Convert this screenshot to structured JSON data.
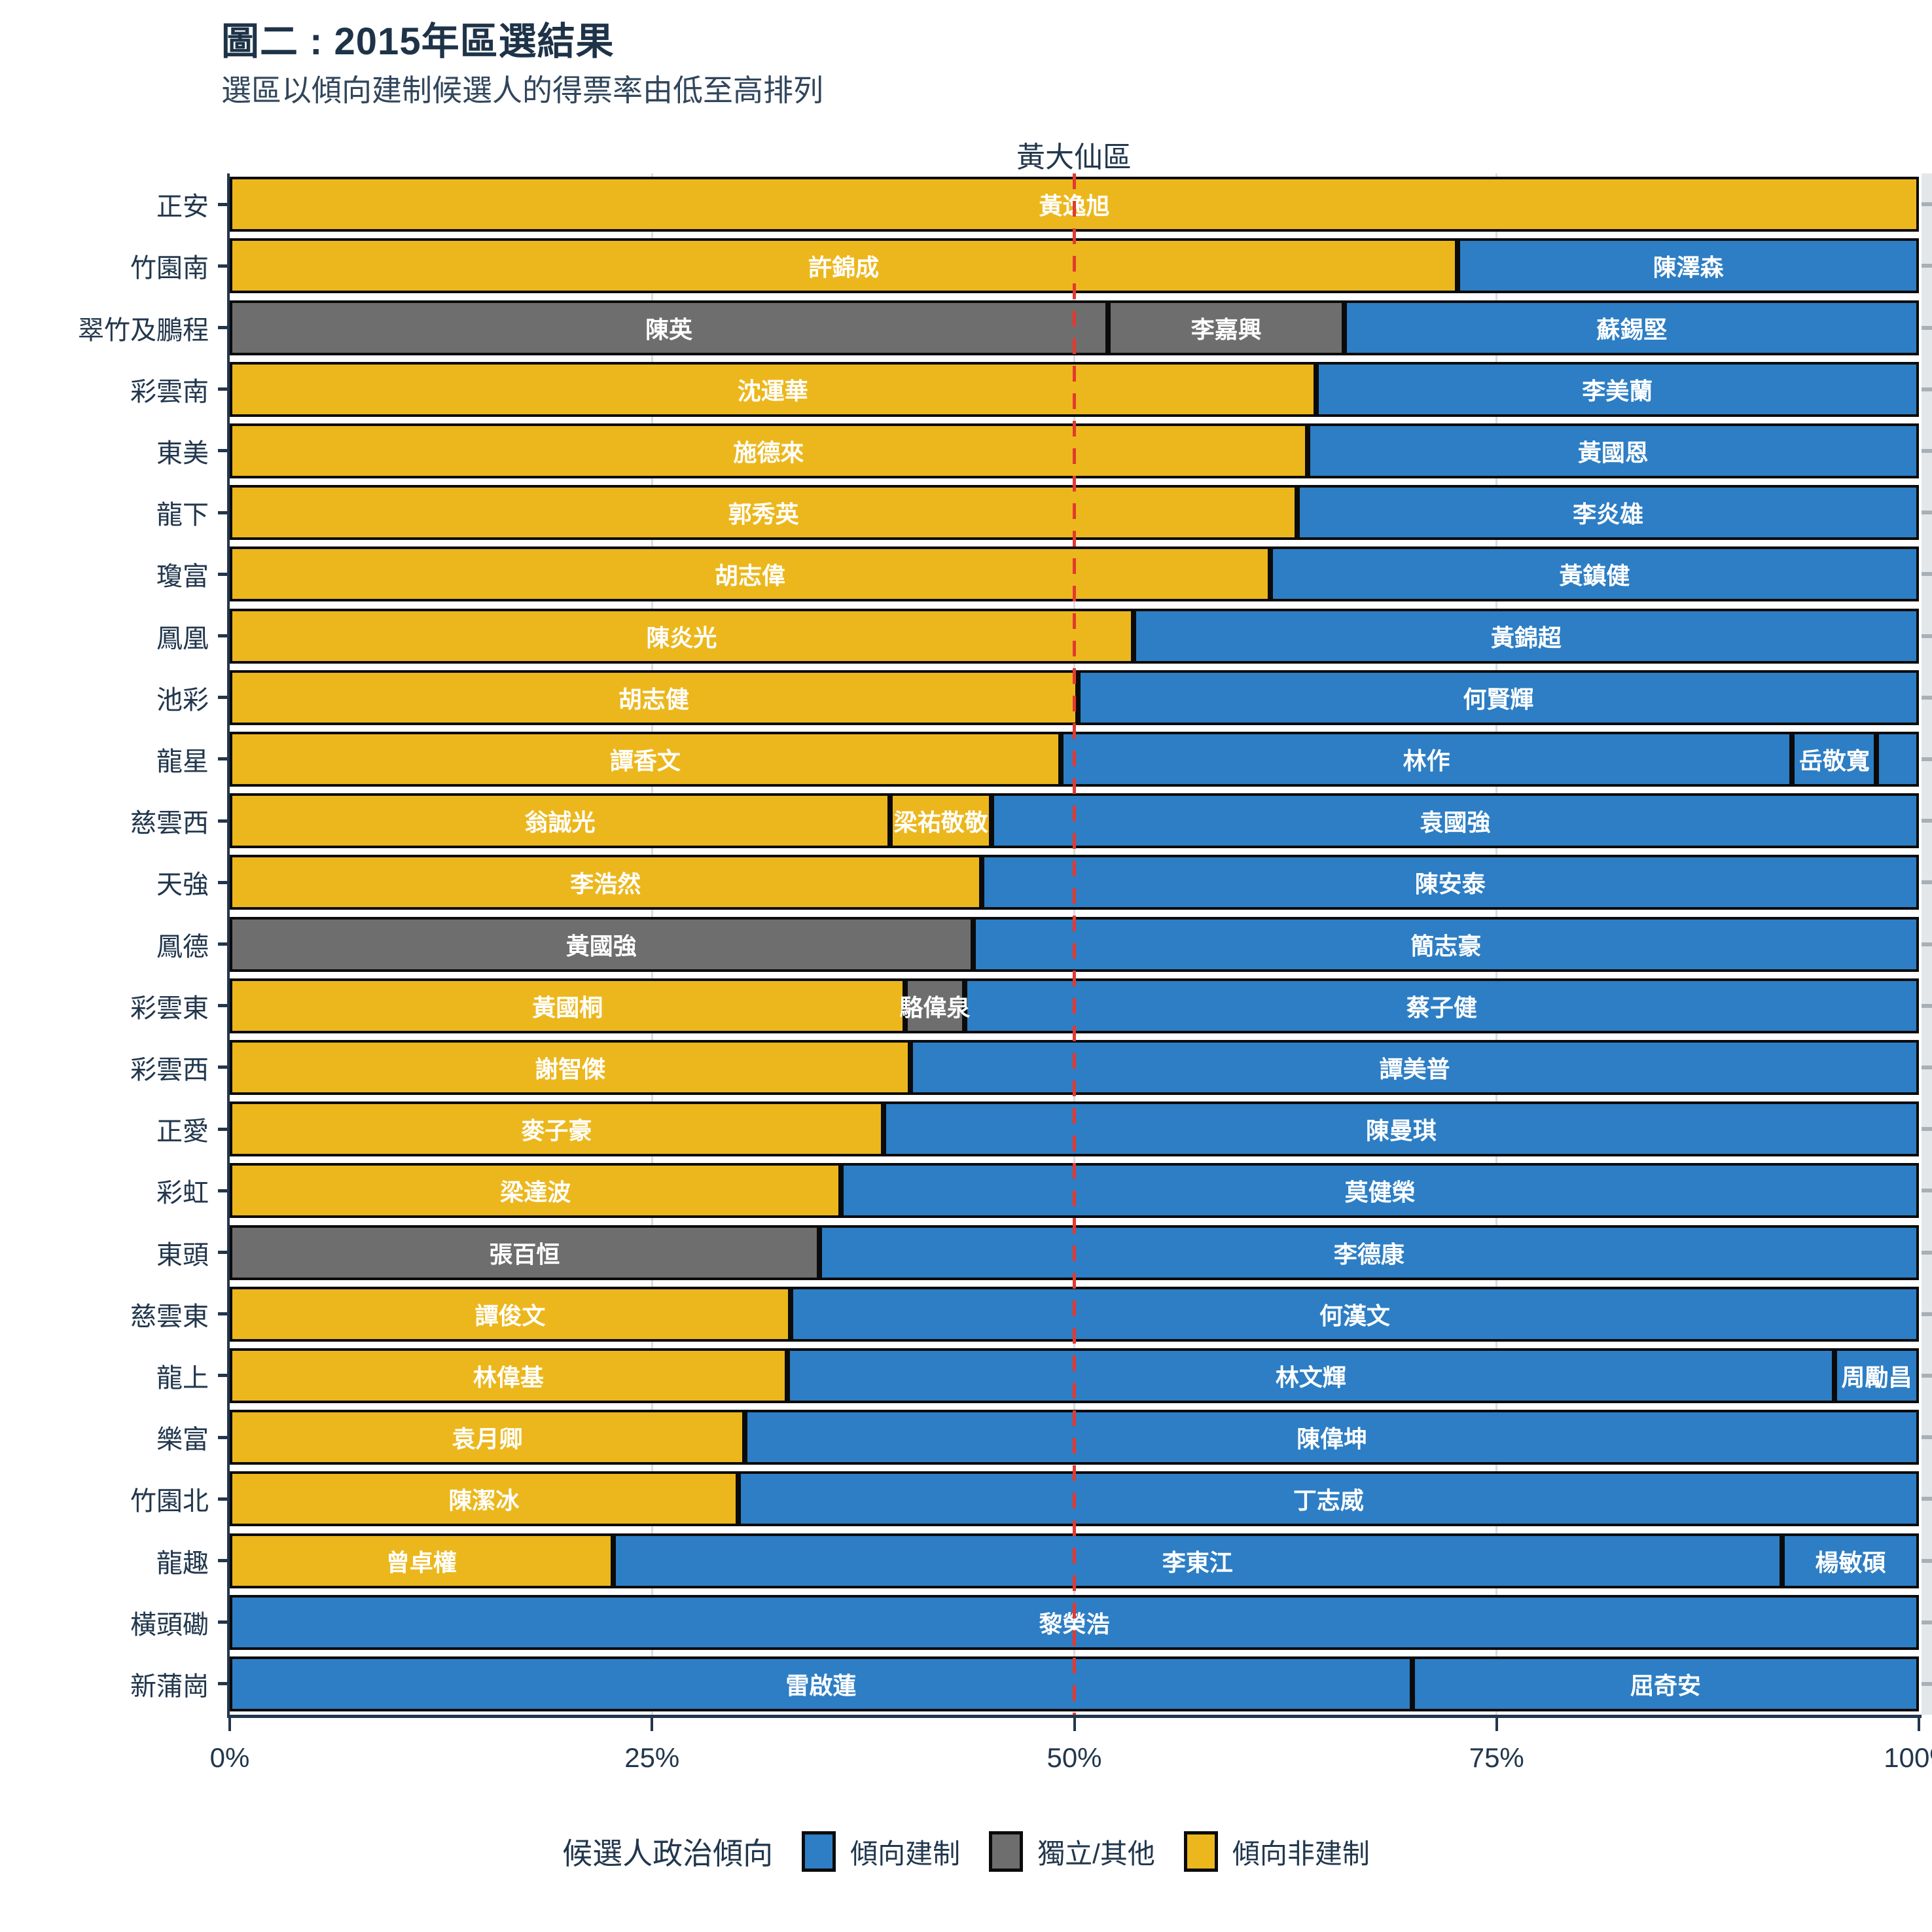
{
  "title": "圖二 : 2015年區選結果",
  "subtitle": "選區以傾向建制候選人的得票率由低至高排列",
  "facet_label": "黃大仙區",
  "colors": {
    "est": "#2d7ec4",
    "ind": "#6f6e6e",
    "dem": "#ecb71d",
    "reference_line": "#e23a30",
    "axis_text": "#22374d"
  },
  "legend": {
    "title": "候選人政治傾向",
    "items": [
      {
        "key": "est",
        "label": "傾向建制"
      },
      {
        "key": "ind",
        "label": "獨立/其他"
      },
      {
        "key": "dem",
        "label": "傾向非建制"
      }
    ]
  },
  "chart_data": {
    "type": "bar",
    "orientation": "horizontal-stacked",
    "title": "圖二 : 2015年區選結果",
    "subtitle": "選區以傾向建制候選人的得票率由低至高排列",
    "facet": "黃大仙區",
    "unit": "percent_of_vote",
    "x_ticks": [
      0,
      25,
      50,
      75,
      100
    ],
    "x_tick_labels": [
      "0%",
      "25%",
      "50%",
      "75%",
      "100%"
    ],
    "x_range": [
      0,
      100
    ],
    "reference_line_pct": 50,
    "legend_position": "bottom",
    "leaning_labels": {
      "est": "傾向建制",
      "ind": "獨立/其他",
      "dem": "傾向非建制"
    },
    "districts": [
      {
        "district": "正安",
        "segments": [
          {
            "name": "黃逸旭",
            "leaning": "dem",
            "pct": 100
          }
        ]
      },
      {
        "district": "竹園南",
        "segments": [
          {
            "name": "許錦成",
            "leaning": "dem",
            "pct": 72.7
          },
          {
            "name": "陳澤森",
            "leaning": "est",
            "pct": 27.3
          }
        ]
      },
      {
        "district": "翠竹及鵬程",
        "segments": [
          {
            "name": "陳英",
            "leaning": "ind",
            "pct": 52.0
          },
          {
            "name": "李嘉興",
            "leaning": "ind",
            "pct": 14.0
          },
          {
            "name": "蘇錫堅",
            "leaning": "est",
            "pct": 34.0
          }
        ]
      },
      {
        "district": "彩雲南",
        "segments": [
          {
            "name": "沈運華",
            "leaning": "dem",
            "pct": 64.3
          },
          {
            "name": "李美蘭",
            "leaning": "est",
            "pct": 35.7
          }
        ]
      },
      {
        "district": "東美",
        "segments": [
          {
            "name": "施德來",
            "leaning": "dem",
            "pct": 63.8
          },
          {
            "name": "黃國恩",
            "leaning": "est",
            "pct": 36.2
          }
        ]
      },
      {
        "district": "龍下",
        "segments": [
          {
            "name": "郭秀英",
            "leaning": "dem",
            "pct": 63.2
          },
          {
            "name": "李炎雄",
            "leaning": "est",
            "pct": 36.8
          }
        ]
      },
      {
        "district": "瓊富",
        "segments": [
          {
            "name": "胡志偉",
            "leaning": "dem",
            "pct": 61.6
          },
          {
            "name": "黃鎮健",
            "leaning": "est",
            "pct": 38.4
          }
        ]
      },
      {
        "district": "鳳凰",
        "segments": [
          {
            "name": "陳炎光",
            "leaning": "dem",
            "pct": 53.5
          },
          {
            "name": "黃錦超",
            "leaning": "est",
            "pct": 46.5
          }
        ]
      },
      {
        "district": "池彩",
        "segments": [
          {
            "name": "胡志健",
            "leaning": "dem",
            "pct": 50.2
          },
          {
            "name": "何賢輝",
            "leaning": "est",
            "pct": 49.8
          }
        ]
      },
      {
        "district": "龍星",
        "segments": [
          {
            "name": "譚香文",
            "leaning": "dem",
            "pct": 49.2
          },
          {
            "name": "林作",
            "leaning": "est",
            "pct": 43.3
          },
          {
            "name": "岳敬寬",
            "leaning": "est",
            "pct": 5.0
          },
          {
            "name": "",
            "leaning": "est",
            "pct": 2.5
          }
        ]
      },
      {
        "district": "慈雲西",
        "segments": [
          {
            "name": "翁誠光",
            "leaning": "dem",
            "pct": 39.1
          },
          {
            "name": "梁祐敬敬",
            "leaning": "dem",
            "pct": 6.0
          },
          {
            "name": "袁國強",
            "leaning": "est",
            "pct": 54.9
          }
        ]
      },
      {
        "district": "天強",
        "segments": [
          {
            "name": "李浩然",
            "leaning": "dem",
            "pct": 44.5
          },
          {
            "name": "陳安泰",
            "leaning": "est",
            "pct": 55.5
          }
        ]
      },
      {
        "district": "鳳德",
        "segments": [
          {
            "name": "黃國強",
            "leaning": "ind",
            "pct": 44.0
          },
          {
            "name": "簡志豪",
            "leaning": "est",
            "pct": 56.0
          }
        ]
      },
      {
        "district": "彩雲東",
        "segments": [
          {
            "name": "黃國桐",
            "leaning": "dem",
            "pct": 40.0
          },
          {
            "name": "駱偉泉",
            "leaning": "ind",
            "pct": 3.5
          },
          {
            "name": "蔡子健",
            "leaning": "est",
            "pct": 56.5
          }
        ]
      },
      {
        "district": "彩雲西",
        "segments": [
          {
            "name": "謝智傑",
            "leaning": "dem",
            "pct": 40.3
          },
          {
            "name": "譚美普",
            "leaning": "est",
            "pct": 59.7
          }
        ]
      },
      {
        "district": "正愛",
        "segments": [
          {
            "name": "麥子豪",
            "leaning": "dem",
            "pct": 38.7
          },
          {
            "name": "陳曼琪",
            "leaning": "est",
            "pct": 61.3
          }
        ]
      },
      {
        "district": "彩虹",
        "segments": [
          {
            "name": "梁達波",
            "leaning": "dem",
            "pct": 36.2
          },
          {
            "name": "莫健榮",
            "leaning": "est",
            "pct": 63.8
          }
        ]
      },
      {
        "district": "東頭",
        "segments": [
          {
            "name": "張百恒",
            "leaning": "ind",
            "pct": 34.9
          },
          {
            "name": "李德康",
            "leaning": "est",
            "pct": 65.1
          }
        ]
      },
      {
        "district": "慈雲東",
        "segments": [
          {
            "name": "譚俊文",
            "leaning": "dem",
            "pct": 33.2
          },
          {
            "name": "何漢文",
            "leaning": "est",
            "pct": 66.8
          }
        ]
      },
      {
        "district": "龍上",
        "segments": [
          {
            "name": "林偉基",
            "leaning": "dem",
            "pct": 33.0
          },
          {
            "name": "林文輝",
            "leaning": "est",
            "pct": 62.0
          },
          {
            "name": "周勵昌",
            "leaning": "est",
            "pct": 5.0
          }
        ]
      },
      {
        "district": "樂富",
        "segments": [
          {
            "name": "袁月卿",
            "leaning": "dem",
            "pct": 30.5
          },
          {
            "name": "陳偉坤",
            "leaning": "est",
            "pct": 69.5
          }
        ]
      },
      {
        "district": "竹園北",
        "segments": [
          {
            "name": "陳潔冰",
            "leaning": "dem",
            "pct": 30.1
          },
          {
            "name": "丁志威",
            "leaning": "est",
            "pct": 69.9
          }
        ]
      },
      {
        "district": "龍趣",
        "segments": [
          {
            "name": "曾卓權",
            "leaning": "dem",
            "pct": 22.7
          },
          {
            "name": "李東江",
            "leaning": "est",
            "pct": 69.2
          },
          {
            "name": "楊敏碩",
            "leaning": "est",
            "pct": 8.1
          }
        ]
      },
      {
        "district": "橫頭磡",
        "segments": [
          {
            "name": "黎榮浩",
            "leaning": "est",
            "pct": 100
          }
        ]
      },
      {
        "district": "新蒲崗",
        "segments": [
          {
            "name": "雷啟蓮",
            "leaning": "est",
            "pct": 70.0
          },
          {
            "name": "屈奇安",
            "leaning": "est",
            "pct": 30.0
          }
        ]
      }
    ]
  }
}
